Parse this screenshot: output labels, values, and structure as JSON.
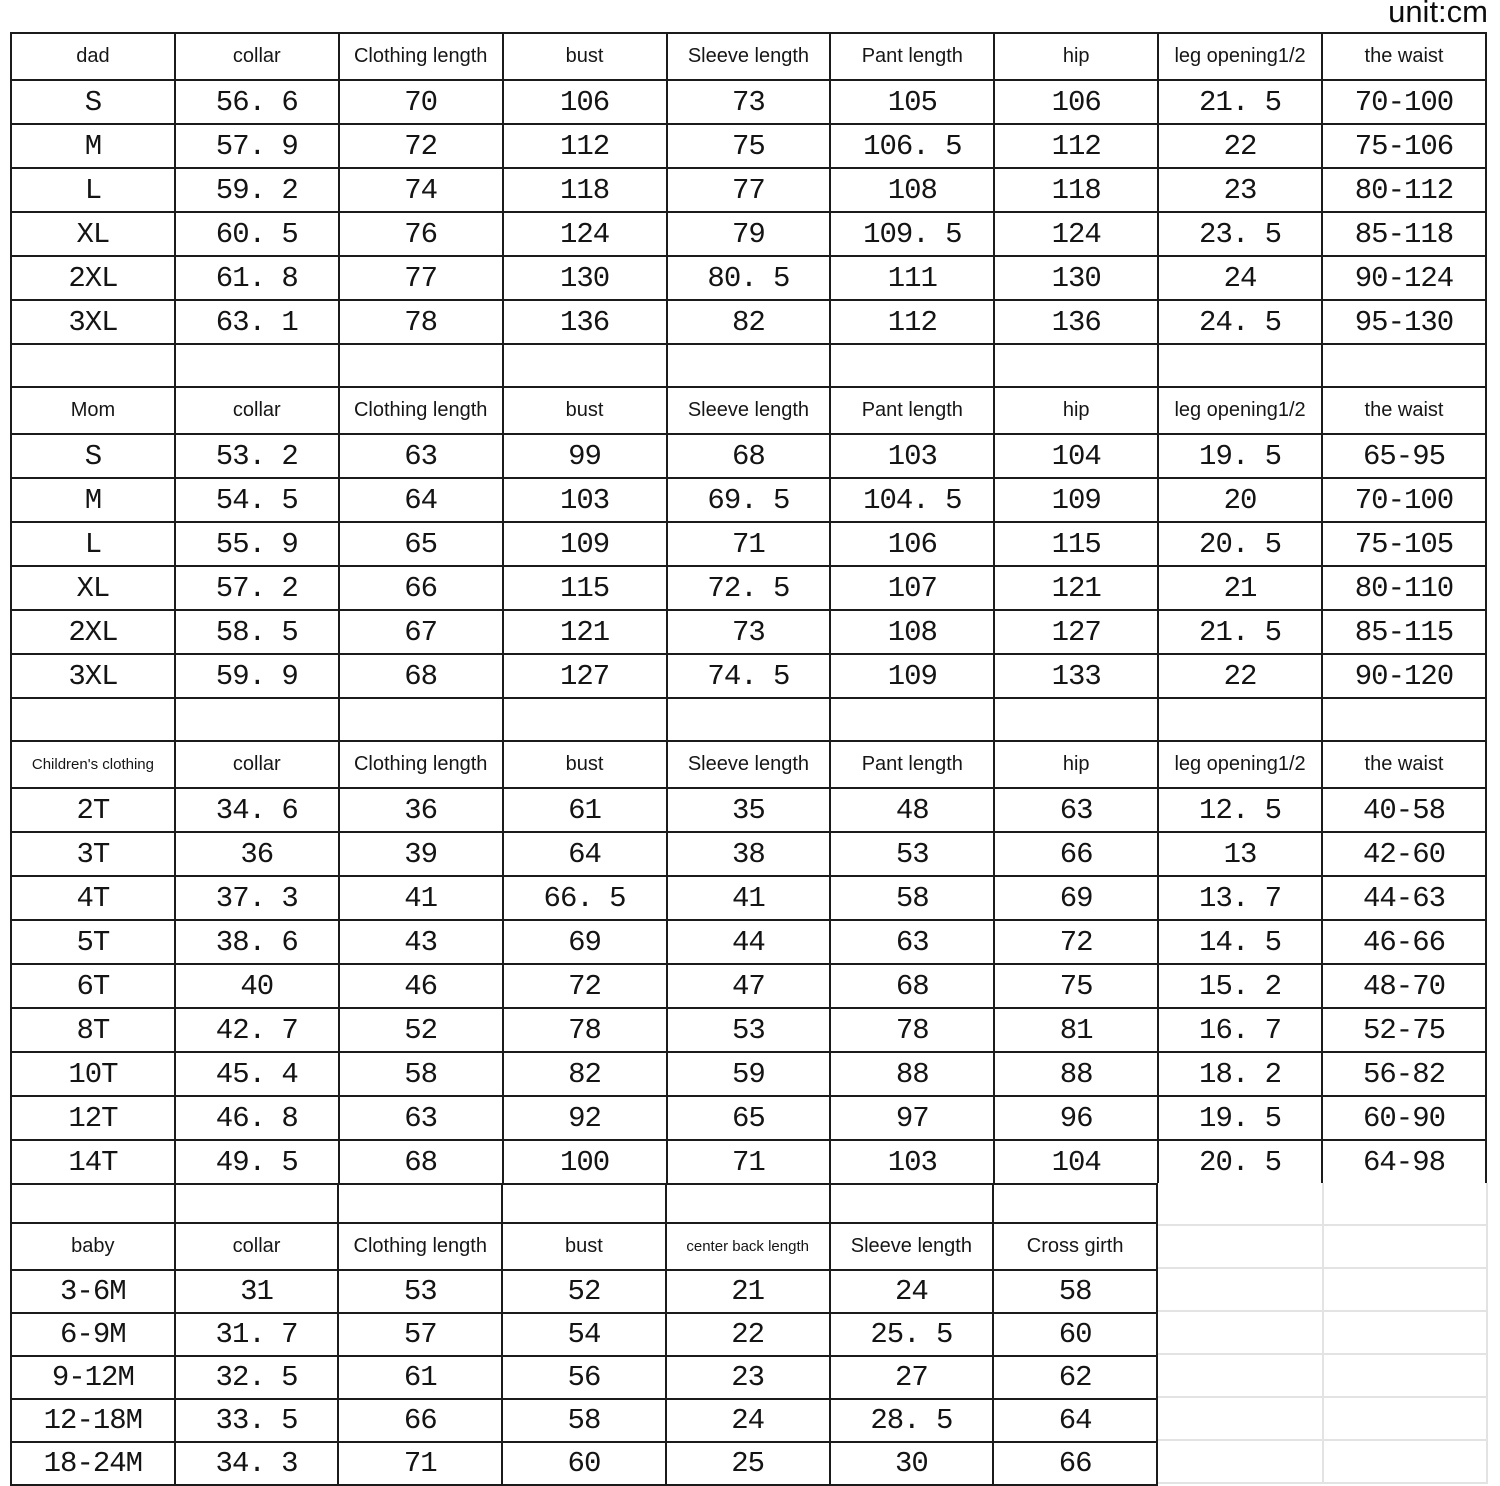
{
  "unit_label": "unit:cm",
  "colors": {
    "border": "#1b1b1b",
    "text": "#141414",
    "faint_gridline": "#e3e3e3",
    "background": "#ffffff"
  },
  "sections": [
    {
      "id": "dad",
      "leading_spacer": false,
      "header": [
        "dad",
        "collar",
        "Clothing length",
        "bust",
        "Sleeve length",
        "Pant length",
        "hip",
        "leg opening1/2",
        "the waist"
      ],
      "rows": [
        [
          "S",
          "56. 6",
          "70",
          "106",
          "73",
          "105",
          "106",
          "21. 5",
          "70-100"
        ],
        [
          "M",
          "57. 9",
          "72",
          "112",
          "75",
          "106. 5",
          "112",
          "22",
          "75-106"
        ],
        [
          "L",
          "59. 2",
          "74",
          "118",
          "77",
          "108",
          "118",
          "23",
          "80-112"
        ],
        [
          "XL",
          "60. 5",
          "76",
          "124",
          "79",
          "109. 5",
          "124",
          "23. 5",
          "85-118"
        ],
        [
          "2XL",
          "61. 8",
          "77",
          "130",
          "80. 5",
          "111",
          "130",
          "24",
          "90-124"
        ],
        [
          "3XL",
          "63. 1",
          "78",
          "136",
          "82",
          "112",
          "136",
          "24. 5",
          "95-130"
        ]
      ]
    },
    {
      "id": "mom",
      "leading_spacer": true,
      "header": [
        "Mom",
        "collar",
        "Clothing length",
        "bust",
        "Sleeve length",
        "Pant length",
        "hip",
        "leg opening1/2",
        "the waist"
      ],
      "rows": [
        [
          "S",
          "53. 2",
          "63",
          "99",
          "68",
          "103",
          "104",
          "19. 5",
          "65-95"
        ],
        [
          "M",
          "54. 5",
          "64",
          "103",
          "69. 5",
          "104. 5",
          "109",
          "20",
          "70-100"
        ],
        [
          "L",
          "55. 9",
          "65",
          "109",
          "71",
          "106",
          "115",
          "20. 5",
          "75-105"
        ],
        [
          "XL",
          "57. 2",
          "66",
          "115",
          "72. 5",
          "107",
          "121",
          "21",
          "80-110"
        ],
        [
          "2XL",
          "58. 5",
          "67",
          "121",
          "73",
          "108",
          "127",
          "21. 5",
          "85-115"
        ],
        [
          "3XL",
          "59. 9",
          "68",
          "127",
          "74. 5",
          "109",
          "133",
          "22",
          "90-120"
        ]
      ]
    },
    {
      "id": "children",
      "leading_spacer": true,
      "header": [
        "Children's clothing",
        "collar",
        "Clothing length",
        "bust",
        "Sleeve length",
        "Pant length",
        "hip",
        "leg opening1/2",
        "the waist"
      ],
      "rows": [
        [
          "2T",
          "34. 6",
          "36",
          "61",
          "35",
          "48",
          "63",
          "12. 5",
          "40-58"
        ],
        [
          "3T",
          "36",
          "39",
          "64",
          "38",
          "53",
          "66",
          "13",
          "42-60"
        ],
        [
          "4T",
          "37. 3",
          "41",
          "66. 5",
          "41",
          "58",
          "69",
          "13. 7",
          "44-63"
        ],
        [
          "5T",
          "38. 6",
          "43",
          "69",
          "44",
          "63",
          "72",
          "14. 5",
          "46-66"
        ],
        [
          "6T",
          "40",
          "46",
          "72",
          "47",
          "68",
          "75",
          "15. 2",
          "48-70"
        ],
        [
          "8T",
          "42. 7",
          "52",
          "78",
          "53",
          "78",
          "81",
          "16. 7",
          "52-75"
        ],
        [
          "10T",
          "45. 4",
          "58",
          "82",
          "59",
          "88",
          "88",
          "18. 2",
          "56-82"
        ],
        [
          "12T",
          "46. 8",
          "63",
          "92",
          "65",
          "97",
          "96",
          "19. 5",
          "60-90"
        ],
        [
          "14T",
          "49. 5",
          "68",
          "100",
          "71",
          "103",
          "104",
          "20. 5",
          "64-98"
        ]
      ]
    },
    {
      "id": "baby",
      "leading_spacer": true,
      "header": [
        "baby",
        "collar",
        "Clothing length",
        "bust",
        "center back length",
        "Sleeve length",
        "Cross girth"
      ],
      "rows": [
        [
          "3-6M",
          "31",
          "53",
          "52",
          "21",
          "24",
          "58"
        ],
        [
          "6-9M",
          "31. 7",
          "57",
          "54",
          "22",
          "25. 5",
          "60"
        ],
        [
          "9-12M",
          "32. 5",
          "61",
          "56",
          "23",
          "27",
          "62"
        ],
        [
          "12-18M",
          "33. 5",
          "66",
          "58",
          "24",
          "28. 5",
          "64"
        ],
        [
          "18-24M",
          "34. 3",
          "71",
          "60",
          "25",
          "30",
          "66"
        ]
      ]
    }
  ]
}
